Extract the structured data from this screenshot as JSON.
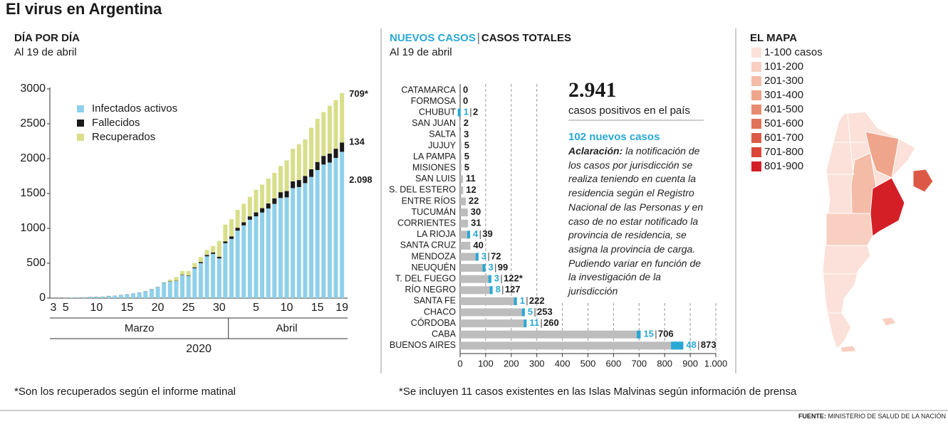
{
  "title": "El virus en Argentina",
  "source_label": "FUENTE:",
  "source": "MINISTERIO DE SALUD DE LA NACIÓN",
  "chart_data": [
    {
      "type": "stacked_bar",
      "subtitle": "DÍA POR DÍA",
      "date": "Al 19 de abril",
      "categories": [
        "3",
        null,
        "5",
        null,
        null,
        null,
        null,
        "10",
        null,
        null,
        null,
        null,
        "15",
        null,
        null,
        null,
        null,
        "20",
        null,
        null,
        null,
        null,
        "25",
        null,
        null,
        null,
        null,
        "30",
        null,
        null,
        null,
        null,
        null,
        "5",
        null,
        null,
        null,
        null,
        "10",
        null,
        null,
        null,
        null,
        "15",
        null,
        null,
        null,
        "19"
      ],
      "x_groups": [
        {
          "label": "Marzo",
          "count": 29
        },
        {
          "label": "Abril",
          "count": 19
        }
      ],
      "x_group_label": "2020",
      "ylim": [
        0,
        3000
      ],
      "yticks": [
        0,
        500,
        1000,
        1500,
        2000,
        2500,
        3000
      ],
      "series": [
        {
          "name": "Infectados activos",
          "color": "#8fd0ea",
          "values": [
            1,
            1,
            2,
            8,
            8,
            11,
            15,
            17,
            19,
            29,
            32,
            43,
            54,
            63,
            77,
            94,
            125,
            155,
            218,
            235,
            245,
            329,
            316,
            427,
            500,
            599,
            634,
            569,
            787,
            849,
            967,
            1043,
            1124,
            1173,
            1227,
            1285,
            1351,
            1436,
            1445,
            1577,
            1593,
            1649,
            1738,
            1837,
            1916,
            1944,
            2010,
            2098
          ],
          "value_labels": [
            null,
            null,
            null,
            null,
            null,
            null,
            null,
            null,
            null,
            null,
            null,
            null,
            null,
            null,
            null,
            null,
            null,
            null,
            null,
            null,
            null,
            null,
            null,
            null,
            null,
            null,
            null,
            null,
            null,
            null,
            null,
            null,
            null,
            null,
            null,
            null,
            null,
            null,
            null,
            null,
            null,
            null,
            null,
            null,
            null,
            null,
            null,
            "2.098"
          ]
        },
        {
          "name": "Fallecidos",
          "color": "#1a1a1a",
          "values": [
            0,
            0,
            0,
            0,
            1,
            1,
            2,
            2,
            2,
            2,
            2,
            2,
            2,
            2,
            2,
            3,
            3,
            3,
            4,
            4,
            4,
            6,
            8,
            12,
            17,
            19,
            20,
            23,
            27,
            36,
            42,
            44,
            48,
            56,
            63,
            72,
            79,
            83,
            90,
            97,
            100,
            103,
            109,
            115,
            123,
            129,
            132,
            134
          ],
          "value_labels": [
            null,
            null,
            null,
            null,
            null,
            null,
            null,
            null,
            null,
            null,
            null,
            null,
            null,
            null,
            null,
            null,
            null,
            null,
            null,
            null,
            null,
            null,
            null,
            null,
            null,
            null,
            null,
            null,
            null,
            null,
            null,
            null,
            null,
            null,
            null,
            null,
            null,
            null,
            null,
            null,
            null,
            null,
            null,
            null,
            null,
            null,
            null,
            "134"
          ]
        },
        {
          "name": "Recuperados",
          "color": "#d8de8a",
          "values": [
            0,
            0,
            0,
            0,
            0,
            0,
            0,
            0,
            0,
            0,
            0,
            0,
            0,
            0,
            0,
            0,
            0,
            0,
            3,
            27,
            52,
            52,
            63,
            63,
            72,
            72,
            91,
            228,
            240,
            248,
            256,
            266,
            279,
            325,
            338,
            358,
            365,
            375,
            440,
            468,
            515,
            525,
            596,
            619,
            630,
            685,
            697,
            709
          ],
          "value_labels": [
            null,
            null,
            null,
            null,
            null,
            null,
            null,
            null,
            null,
            null,
            null,
            null,
            null,
            null,
            null,
            null,
            null,
            null,
            null,
            null,
            null,
            null,
            null,
            null,
            null,
            null,
            null,
            null,
            null,
            null,
            null,
            null,
            null,
            null,
            null,
            null,
            null,
            null,
            null,
            null,
            null,
            null,
            null,
            null,
            null,
            null,
            null,
            "709*"
          ]
        }
      ],
      "footnote": "*Son los recuperados según el informe matinal"
    },
    {
      "type": "hbar",
      "date": "Al 19 de abril",
      "categories": [
        "CATAMARCA",
        "FORMOSA",
        "CHUBUT",
        "SAN JUAN",
        "SALTA",
        "JUJUY",
        "LA PAMPA",
        "MISIONES",
        "SAN LUIS",
        "S. DEL ESTERO",
        "ENTRE RÍOS",
        "TUCUMÁN",
        "CORRIENTES",
        "LA RIOJA",
        "SANTA CRUZ",
        "MENDOZA",
        "NEUQUÉN",
        "T. DEL FUEGO",
        "RÍO NEGRO",
        "SANTA FE",
        "CHACO",
        "CÓRDOBA",
        "CABA",
        "BUENOS AIRES"
      ],
      "xlim": [
        0,
        1000
      ],
      "xticks": [
        0,
        100,
        200,
        300,
        400,
        500,
        600,
        700,
        800,
        900,
        {
          "value": 1000,
          "label": "1.000"
        }
      ],
      "grid": true,
      "series": [
        {
          "name": "NUEVOS CASOS",
          "color": "#29a8d4",
          "values": [
            null,
            null,
            1,
            null,
            null,
            null,
            null,
            null,
            null,
            null,
            null,
            null,
            null,
            4,
            null,
            3,
            3,
            3,
            8,
            1,
            5,
            11,
            15,
            48
          ]
        },
        {
          "name": "CASOS TOTALES",
          "color": "#bdbdbd",
          "values": [
            0,
            0,
            2,
            2,
            3,
            5,
            5,
            5,
            11,
            12,
            22,
            30,
            31,
            39,
            40,
            72,
            99,
            122,
            127,
            222,
            253,
            260,
            706,
            873
          ],
          "value_labels": [
            null,
            null,
            null,
            null,
            null,
            null,
            null,
            null,
            null,
            null,
            null,
            null,
            null,
            null,
            null,
            null,
            null,
            "122*",
            null,
            null,
            null,
            null,
            null,
            null
          ]
        }
      ],
      "box": {
        "total": "2.941",
        "total_caption": "casos positivos en el país",
        "new": "102 nuevos casos",
        "note_label": "Aclaración:",
        "note": "la notificación de los casos por jurisdicción se realiza teniendo en cuenta la residencia según el Registro Nacional de las Personas y en caso de no estar notificado la provincia de residencia, se asigna la provincia de carga. Pudiendo variar en función de la investigación de la jurisdicción"
      },
      "footnote": "*Se incluyen 11 casos existentes en las Islas Malvinas según información de prensa"
    },
    {
      "type": "choropleth",
      "subtitle": "EL MAPA",
      "categories": [
        "1-100 casos",
        "101-200",
        "201-300",
        "301-400",
        "401-500",
        "501-600",
        "601-700",
        "701-800",
        "801-900"
      ],
      "colors": [
        "#fbe1d9",
        "#f8cfc1",
        "#f4bba7",
        "#eea58b",
        "#e88b70",
        "#e17257",
        "#dc5a45",
        "#d94537",
        "#d51f27"
      ]
    }
  ]
}
